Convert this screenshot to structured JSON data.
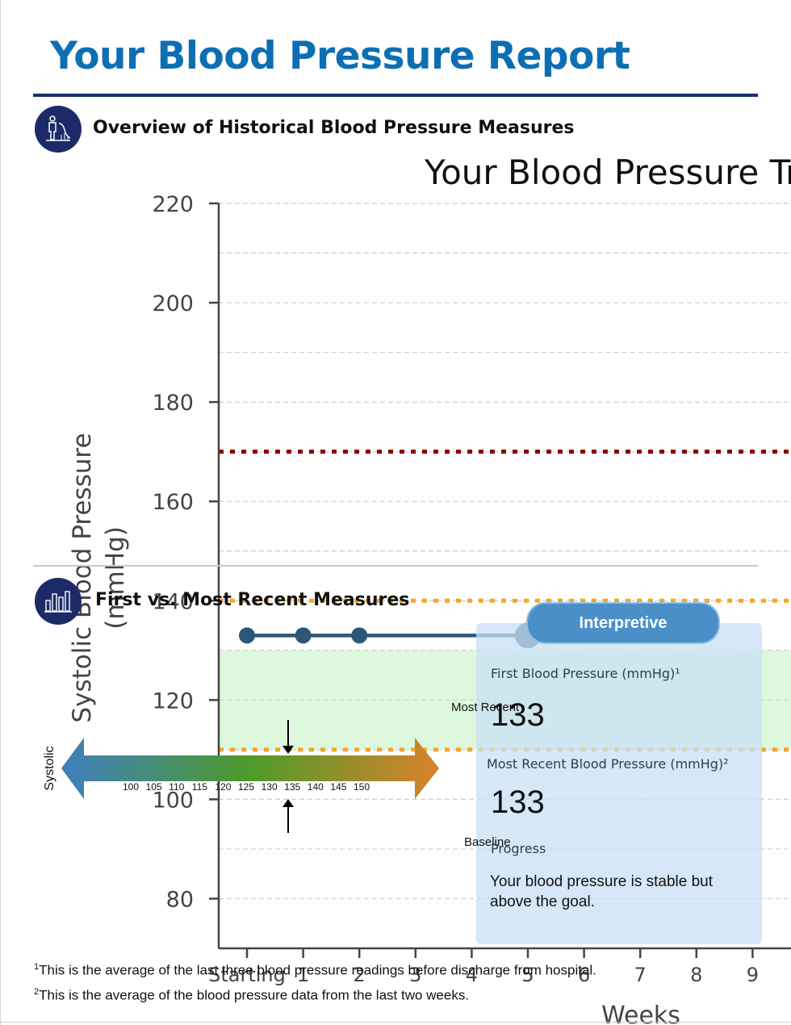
{
  "report": {
    "title": "Your Blood Pressure Report",
    "section1_heading": "Overview of Historical Blood Pressure Measures",
    "section2_heading": "First vs. Most Recent Measures"
  },
  "chart_data": {
    "type": "line",
    "title": "Your Blood Pressure Tr",
    "xlabel": "Weeks",
    "ylabel": "Systolic Blood Pressure (mmHg)",
    "x_ticks": [
      "Starting",
      "1",
      "2",
      "3",
      "4",
      "5",
      "6",
      "7",
      "8",
      "9"
    ],
    "x_tick_values": [
      0,
      1,
      2,
      3,
      4,
      5,
      6,
      7,
      8,
      9
    ],
    "xlim": [
      -0.5,
      9.8
    ],
    "ylim": [
      70,
      220
    ],
    "y_ticks": [
      80,
      100,
      120,
      140,
      160,
      180,
      200,
      220
    ],
    "minor_grid": [
      90,
      110,
      130,
      150,
      170,
      190,
      210
    ],
    "grid": true,
    "series": [
      {
        "x": [
          0,
          1,
          2,
          5
        ],
        "y": [
          133,
          133,
          133,
          133
        ],
        "color": "#2e5777"
      }
    ],
    "reference_lines": [
      {
        "y": 170,
        "color": "#8b0000",
        "style": "dotted"
      },
      {
        "y": 140,
        "color": "#f5a623",
        "style": "dotted"
      },
      {
        "y": 110,
        "color": "#f5a623",
        "style": "dotted"
      }
    ],
    "shaded_band": {
      "y_from": 110,
      "y_to": 130,
      "color": "#d8f7d8"
    }
  },
  "interpretive": {
    "pill_label": "Interpretive",
    "first_label": "First Blood Pressure (mmHg)¹",
    "first_value": "133",
    "recent_label": "Most Recent Blood Pressure (mmHg)²",
    "recent_value": "133",
    "progress_label": "Progress",
    "progress_text": "Your blood pressure is stable but above the goal.",
    "most_recent_marker": "Most Recent",
    "baseline_marker": "Baseline"
  },
  "scale": {
    "label": "Systolic",
    "ticks": [
      "100",
      "105",
      "110",
      "115",
      "120",
      "125",
      "130",
      "135",
      "140",
      "145",
      "150"
    ]
  },
  "footnotes": {
    "n1_mark": "1",
    "n1": "This is the average of the last three blood pressure readings before discharge from hospital.",
    "n2_mark": "2",
    "n2": "This is the average of the blood pressure data from the last two weeks."
  },
  "colors": {
    "title_blue": "#0d6fb3",
    "navy": "#1c2b68",
    "line_dark": "#2e5777",
    "red_ref": "#8b0000",
    "orange_ref": "#f5a623",
    "goal_band": "#d8f7d8",
    "card_bg": "#c8e0f4"
  }
}
